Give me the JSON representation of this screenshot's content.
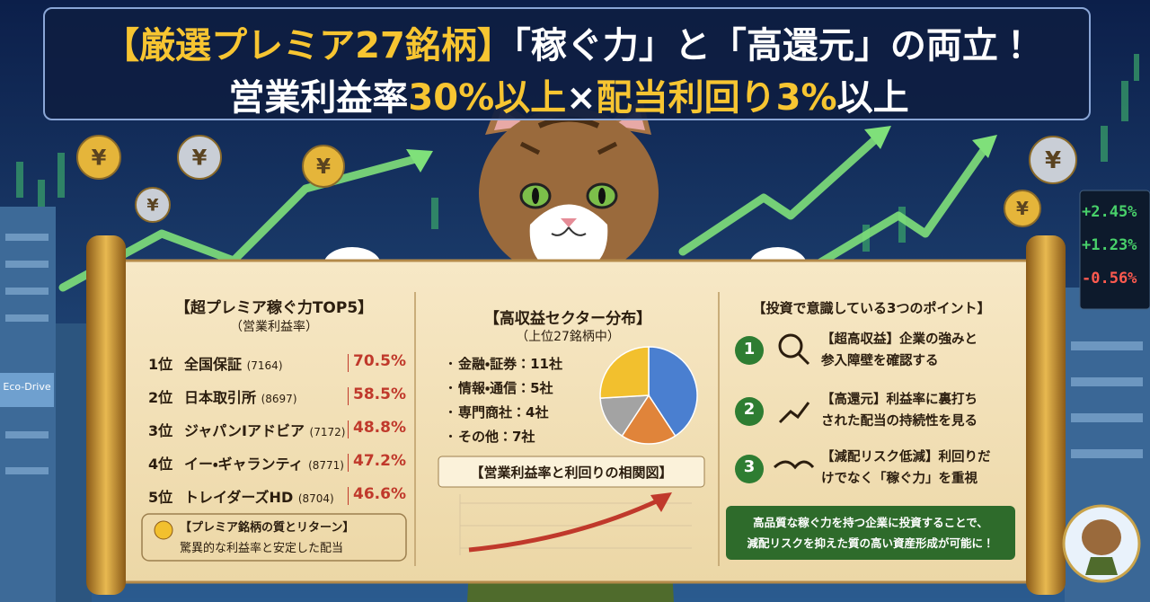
{
  "title": {
    "line1": [
      "【厳選プレミア27銘柄】",
      "「稼ぐ力」と「高還元」の両立！"
    ],
    "line2": [
      "営業利益率",
      "30%以上",
      "×",
      "配当利回り3%",
      "以上"
    ]
  },
  "coin_symbol": "¥",
  "ticker": [
    "+2.45%",
    "+1.23%",
    "-0.56%"
  ],
  "sign": "Eco-Drive",
  "top5": {
    "title": "【超プレミア稼ぐ力TOP5】",
    "subtitle": "（営業利益率）",
    "rows": [
      {
        "rank": "1位",
        "name": "全国保証",
        "code": "(7164)",
        "rate": "70.5%"
      },
      {
        "rank": "2位",
        "name": "日本取引所",
        "code": "(8697)",
        "rate": "58.5%"
      },
      {
        "rank": "3位",
        "name": "ジャパンIアドビア",
        "code": "(7172)",
        "rate": "48.8%"
      },
      {
        "rank": "4位",
        "name": "イー・ギャランティ",
        "code": "(8771)",
        "rate": "47.2%"
      },
      {
        "rank": "5位",
        "name": "トレイダーズHD",
        "code": "(8704)",
        "rate": "46.6%"
      }
    ],
    "note": {
      "title": "【プレミア銘柄の質とリターン】",
      "text": "驚異的な利益率と安定した配当"
    }
  },
  "sectors": {
    "title": "【高収益セクター分布】",
    "subtitle": "（上位27銘柄中）",
    "items": [
      {
        "label": "金融・証券：11社",
        "value": 11,
        "color": "#4a7fd0"
      },
      {
        "label": "情報・通信：5社",
        "value": 5,
        "color": "#e0843a"
      },
      {
        "label": "専門商社：4社",
        "value": 4,
        "color": "#a3a3a3"
      },
      {
        "label": "その他：7社",
        "value": 7,
        "color": "#f2c02e"
      }
    ],
    "chart_caption": "【営業利益率と利回りの相関図】"
  },
  "points": {
    "title": "【投資で意識している3つのポイント】",
    "items": [
      {
        "num": "1",
        "lines": [
          "【超高収益】企業の強みと",
          "参入障壁を確認する"
        ]
      },
      {
        "num": "2",
        "lines": [
          "【高還元】利益率に裏打ち",
          "された配当の持続性を見る"
        ]
      },
      {
        "num": "3",
        "lines": [
          "【減配リスク低減】利回りだ",
          "けでなく「稼ぐ力」を重視"
        ]
      }
    ],
    "footer": [
      "高品質な稼ぐ力を持つ企業に投資することで、",
      "減配リスクを抑えた質の高い資産形成が可能に！"
    ]
  }
}
